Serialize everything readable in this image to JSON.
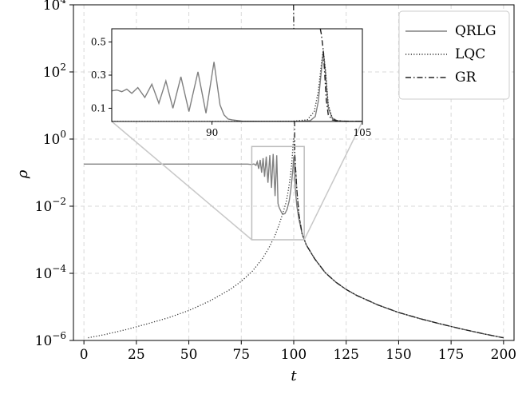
{
  "chart_data": {
    "type": "line",
    "title": "",
    "xlabel": "t",
    "ylabel": "ρ",
    "xlim": [
      -5,
      205
    ],
    "ylim": [
      1e-06,
      10000.0
    ],
    "yscale": "log",
    "grid": true,
    "legend_position": "top-right",
    "x_ticks": [
      0,
      25,
      50,
      75,
      100,
      125,
      150,
      175,
      200
    ],
    "y_ticks": [
      {
        "value": 1e-06,
        "base": "10",
        "exp": "−6"
      },
      {
        "value": 0.0001,
        "base": "10",
        "exp": "−4"
      },
      {
        "value": 0.01,
        "base": "10",
        "exp": "−2"
      },
      {
        "value": 1,
        "base": "10",
        "exp": "0"
      },
      {
        "value": 100,
        "base": "10",
        "exp": "2"
      },
      {
        "value": 10000,
        "base": "10",
        "exp": "4"
      }
    ],
    "series": [
      {
        "name": "QRLG",
        "style": "solid",
        "color": "#808080",
        "x": [
          0,
          20,
          40,
          60,
          78,
          80,
          81,
          82,
          82.6,
          83.3,
          84,
          84.7,
          85.4,
          86.1,
          86.9,
          87.7,
          88.6,
          89.4,
          90.2,
          91.1,
          91.9,
          92.5,
          93.1,
          93.7,
          94.3,
          95,
          95.8,
          96.8,
          97.8,
          98.6,
          99.2,
          99.6,
          99.8,
          100,
          100.3,
          100.8,
          101.5,
          102.5,
          104,
          106,
          110,
          115,
          120,
          125,
          130,
          140,
          150,
          160,
          170,
          180,
          190,
          200
        ],
        "y": [
          0.18,
          0.18,
          0.18,
          0.18,
          0.18,
          0.175,
          0.182,
          0.165,
          0.21,
          0.13,
          0.24,
          0.1,
          0.27,
          0.075,
          0.3,
          0.05,
          0.33,
          0.035,
          0.36,
          0.02,
          0.33,
          0.012,
          0.009,
          0.0075,
          0.0063,
          0.0058,
          0.006,
          0.008,
          0.014,
          0.03,
          0.07,
          0.13,
          0.2,
          0.3,
          0.12,
          0.03,
          0.01,
          0.004,
          0.0015,
          0.0007,
          0.00027,
          0.000105,
          5.5e-05,
          3.3e-05,
          2.2e-05,
          1.15e-05,
          6.8e-06,
          4.5e-06,
          3.1e-06,
          2.2e-06,
          1.6e-06,
          1.2e-06
        ]
      },
      {
        "name": "LQC",
        "style": "dotted",
        "color": "#333333",
        "x": [
          2,
          10,
          20,
          30,
          40,
          50,
          60,
          70,
          75,
          80,
          85,
          88,
          91,
          93,
          95,
          96.5,
          97.5,
          98.3,
          98.9,
          99.3,
          99.6,
          99.8,
          100,
          100.2,
          100.5,
          101,
          101.5,
          102.5,
          104,
          106,
          110,
          115,
          120,
          125,
          130,
          140,
          150,
          160,
          170,
          180,
          190,
          200
        ],
        "y": [
          1.2e-06,
          1.5e-06,
          2.1e-06,
          3.1e-06,
          4.7e-06,
          7.8e-06,
          1.5e-05,
          3.4e-05,
          5.8e-05,
          0.00011,
          0.00027,
          0.00055,
          0.0013,
          0.0028,
          0.0068,
          0.014,
          0.032,
          0.07,
          0.15,
          0.3,
          0.6,
          0.9,
          1.1,
          0.9,
          0.35,
          0.1,
          0.03,
          0.0055,
          0.0015,
          0.0007,
          0.00027,
          0.000105,
          5.5e-05,
          3.3e-05,
          2.2e-05,
          1.15e-05,
          6.8e-06,
          4.5e-06,
          3.1e-06,
          2.2e-06,
          1.6e-06,
          1.2e-06
        ]
      },
      {
        "name": "GR",
        "style": "dashdot",
        "color": "#222222",
        "x": [
          99.9,
          100.2,
          100.5,
          101,
          101.5,
          102.5,
          104,
          106,
          110,
          115,
          120,
          125,
          130,
          140,
          150,
          160,
          170,
          180,
          190,
          200
        ],
        "y": [
          10000,
          200,
          0.35,
          0.1,
          0.03,
          0.0055,
          0.0015,
          0.0007,
          0.00027,
          0.000105,
          5.5e-05,
          3.3e-05,
          2.2e-05,
          1.15e-05,
          6.8e-06,
          4.5e-06,
          3.1e-06,
          2.2e-06,
          1.6e-06,
          1.2e-06
        ]
      }
    ],
    "inset": {
      "xlim": [
        80,
        105
      ],
      "ylim": [
        0.02,
        0.58
      ],
      "yscale": "linear",
      "region_highlight": {
        "x": [
          80,
          105
        ],
        "y": [
          0.001,
          0.6
        ]
      },
      "x_ticks": [
        90,
        105
      ],
      "y_ticks": [
        0.1,
        0.3,
        0.5
      ],
      "series": [
        {
          "name": "QRLG",
          "x": [
            80,
            80.5,
            81,
            81.5,
            82,
            82.6,
            83.3,
            84,
            84.7,
            85.4,
            86.1,
            86.9,
            87.7,
            88.6,
            89.4,
            90.2,
            90.8,
            91.2,
            91.6,
            92,
            93,
            95,
            97,
            99,
            99.8,
            100.3,
            100.6,
            100.9,
            101.1,
            101.3,
            101.6,
            102,
            102.5,
            103,
            104,
            105
          ],
          "y": [
            0.205,
            0.21,
            0.2,
            0.215,
            0.19,
            0.225,
            0.165,
            0.245,
            0.13,
            0.265,
            0.1,
            0.29,
            0.08,
            0.32,
            0.07,
            0.38,
            0.12,
            0.06,
            0.035,
            0.03,
            0.022,
            0.021,
            0.021,
            0.021,
            0.025,
            0.05,
            0.14,
            0.32,
            0.44,
            0.33,
            0.1,
            0.04,
            0.025,
            0.022,
            0.021,
            0.021
          ]
        },
        {
          "name": "LQC",
          "x": [
            80,
            85,
            90,
            95,
            98,
            99.5,
            100.2,
            100.6,
            100.9,
            101.1,
            101.3,
            101.6,
            102,
            102.5,
            103,
            104,
            105
          ],
          "y": [
            0.02,
            0.02,
            0.02,
            0.02,
            0.021,
            0.03,
            0.08,
            0.2,
            0.36,
            0.45,
            0.34,
            0.12,
            0.04,
            0.025,
            0.022,
            0.021,
            0.021
          ]
        },
        {
          "name": "GR",
          "x": [
            100.8,
            100.9,
            101,
            101.1,
            101.25,
            101.4,
            101.6,
            102,
            102.5,
            103,
            104,
            105
          ],
          "y": [
            0.58,
            0.55,
            0.5,
            0.45,
            0.3,
            0.15,
            0.06,
            0.03,
            0.024,
            0.022,
            0.021,
            0.021
          ]
        }
      ]
    }
  }
}
